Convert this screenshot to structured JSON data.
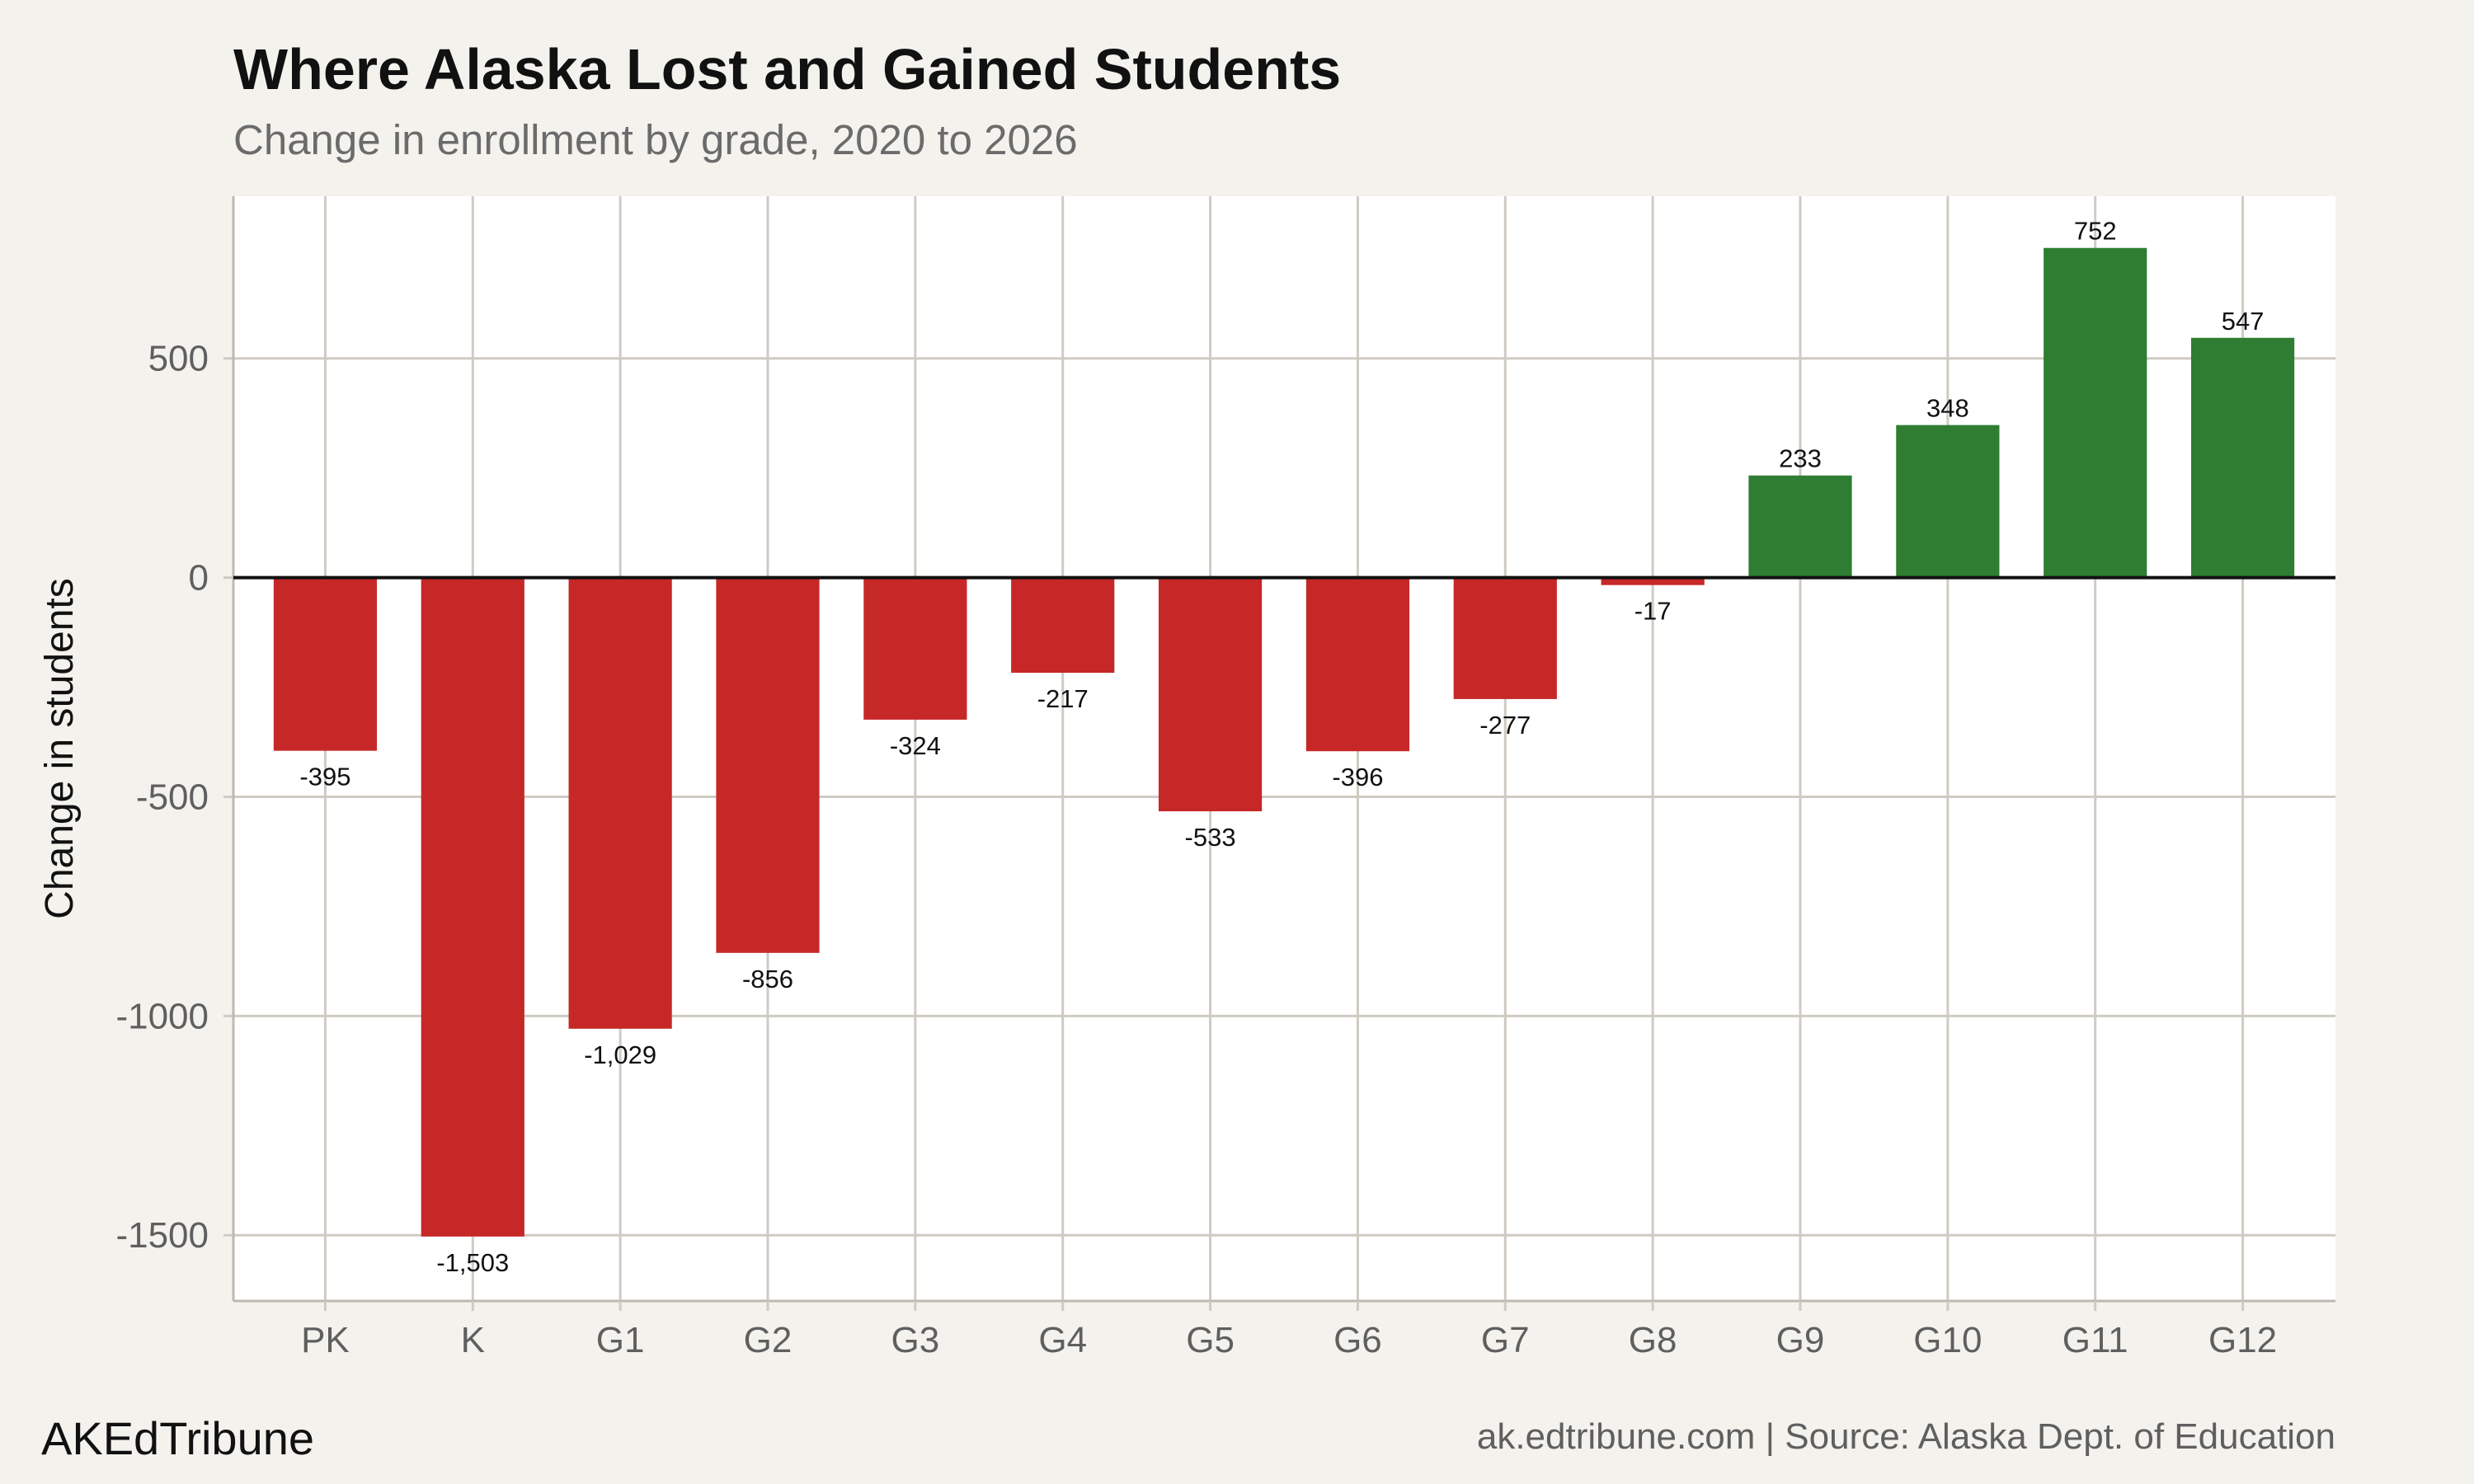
{
  "header": {
    "title": "Where Alaska Lost and Gained Students",
    "subtitle": "Change in enrollment by grade, 2020 to 2026"
  },
  "footer": {
    "brand": "AKEdTribune",
    "source": "ak.edtribune.com | Source: Alaska Dept. of Education"
  },
  "colors": {
    "negative": "#c62828",
    "positive": "#2e7d32",
    "grid": "#cfcbc3",
    "panel": "#ffffff",
    "background": "#f4f2ed"
  },
  "chart_data": {
    "type": "bar",
    "ylabel": "Change in students",
    "xlabel": "",
    "ylim": [
      -1650,
      870
    ],
    "yticks": [
      500,
      0,
      -500,
      -1000,
      -1500
    ],
    "ytick_labels": [
      "500",
      "0",
      "-500",
      "-1000",
      "-1500"
    ],
    "grid": true,
    "categories": [
      "PK",
      "K",
      "G1",
      "G2",
      "G3",
      "G4",
      "G5",
      "G6",
      "G7",
      "G8",
      "G9",
      "G10",
      "G11",
      "G12"
    ],
    "values": [
      -395,
      -1503,
      -1029,
      -856,
      -324,
      -217,
      -533,
      -396,
      -277,
      -17,
      233,
      348,
      752,
      547
    ],
    "data_labels": [
      "-395",
      "-1,503",
      "-1,029",
      "-856",
      "-324",
      "-217",
      "-533",
      "-396",
      "-277",
      "-17",
      "233",
      "348",
      "752",
      "547"
    ]
  }
}
